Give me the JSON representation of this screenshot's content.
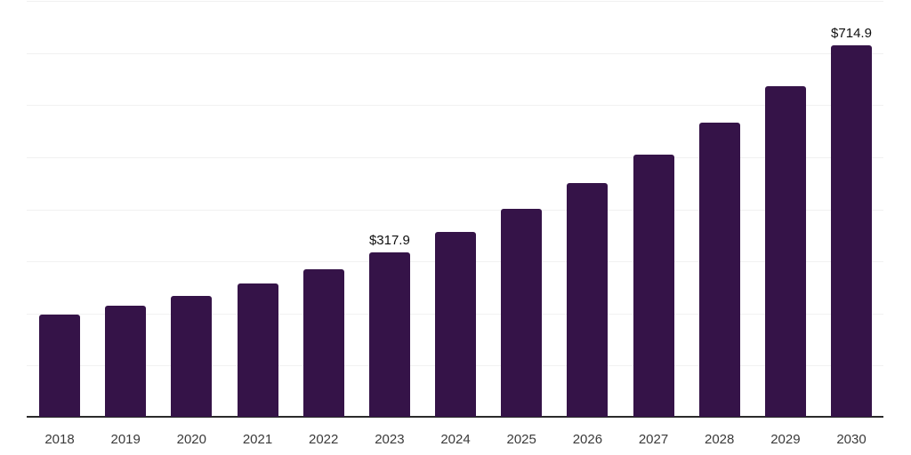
{
  "chart_data": {
    "type": "bar",
    "title": "",
    "xlabel": "",
    "ylabel": "",
    "categories": [
      "2018",
      "2019",
      "2020",
      "2021",
      "2022",
      "2023",
      "2024",
      "2025",
      "2026",
      "2027",
      "2028",
      "2029",
      "2030"
    ],
    "values": [
      198.0,
      215.4,
      234.1,
      258.0,
      285.5,
      317.9,
      356.9,
      400.7,
      449.9,
      505.2,
      567.2,
      636.9,
      714.9
    ],
    "labeled_points": [
      {
        "category": "2023",
        "text": "$317.9"
      },
      {
        "category": "2030",
        "text": "$714.9"
      }
    ],
    "currency_prefix": "$",
    "ylim": [
      0,
      800
    ],
    "gridline_step": 100,
    "grid": true,
    "legend": false,
    "legend_position": "none"
  },
  "colors": {
    "bar": "#351348",
    "axis": "#2b2b2b",
    "gridline": "#f1f1f1",
    "tick_label": "#3a3a3a",
    "data_label": "#0f0f0f",
    "background": "#ffffff"
  }
}
